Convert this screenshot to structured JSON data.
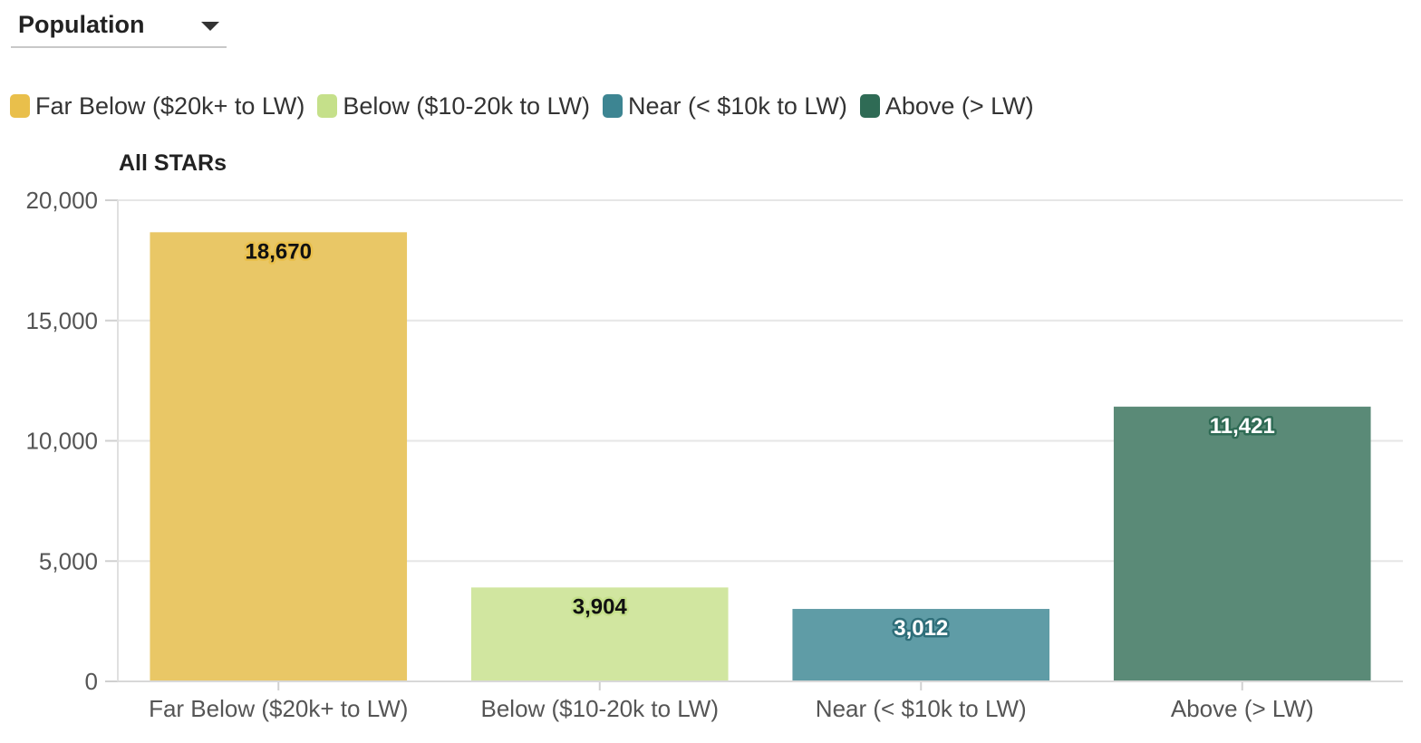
{
  "dropdown": {
    "selected": "Population"
  },
  "legend": [
    {
      "label": "Far Below ($20k+ to LW)",
      "color": "#e9bf4b"
    },
    {
      "label": "Below ($10-20k to LW)",
      "color": "#c5e08a"
    },
    {
      "label": "Near (< $10k to LW)",
      "color": "#3d8592"
    },
    {
      "label": "Above (> LW)",
      "color": "#2f6b55"
    }
  ],
  "chart_data": {
    "type": "bar",
    "title": "All STARs",
    "xlabel": "",
    "ylabel": "",
    "categories": [
      "Far Below ($20k+ to LW)",
      "Below ($10-20k to LW)",
      "Near (< $10k to LW)",
      "Above (> LW)"
    ],
    "values": [
      18670,
      3904,
      3012,
      11421
    ],
    "value_labels": [
      "18,670",
      "3,904",
      "3,012",
      "11,421"
    ],
    "colors": [
      "#e9c766",
      "#d1e6a0",
      "#5f9ca6",
      "#5a8a77"
    ],
    "label_colors": [
      "#111111",
      "#111111",
      "#ffffff",
      "#ffffff"
    ],
    "label_outline_colors": [
      "#e9bf4b",
      "#c5e08a",
      "#2f6f7a",
      "#2f6b55"
    ],
    "ylim": [
      0,
      20000
    ],
    "yticks": [
      0,
      5000,
      10000,
      15000,
      20000
    ],
    "ytick_labels": [
      "0",
      "5,000",
      "10,000",
      "15,000",
      "20,000"
    ],
    "grid": true,
    "legend_position": "top-left"
  }
}
